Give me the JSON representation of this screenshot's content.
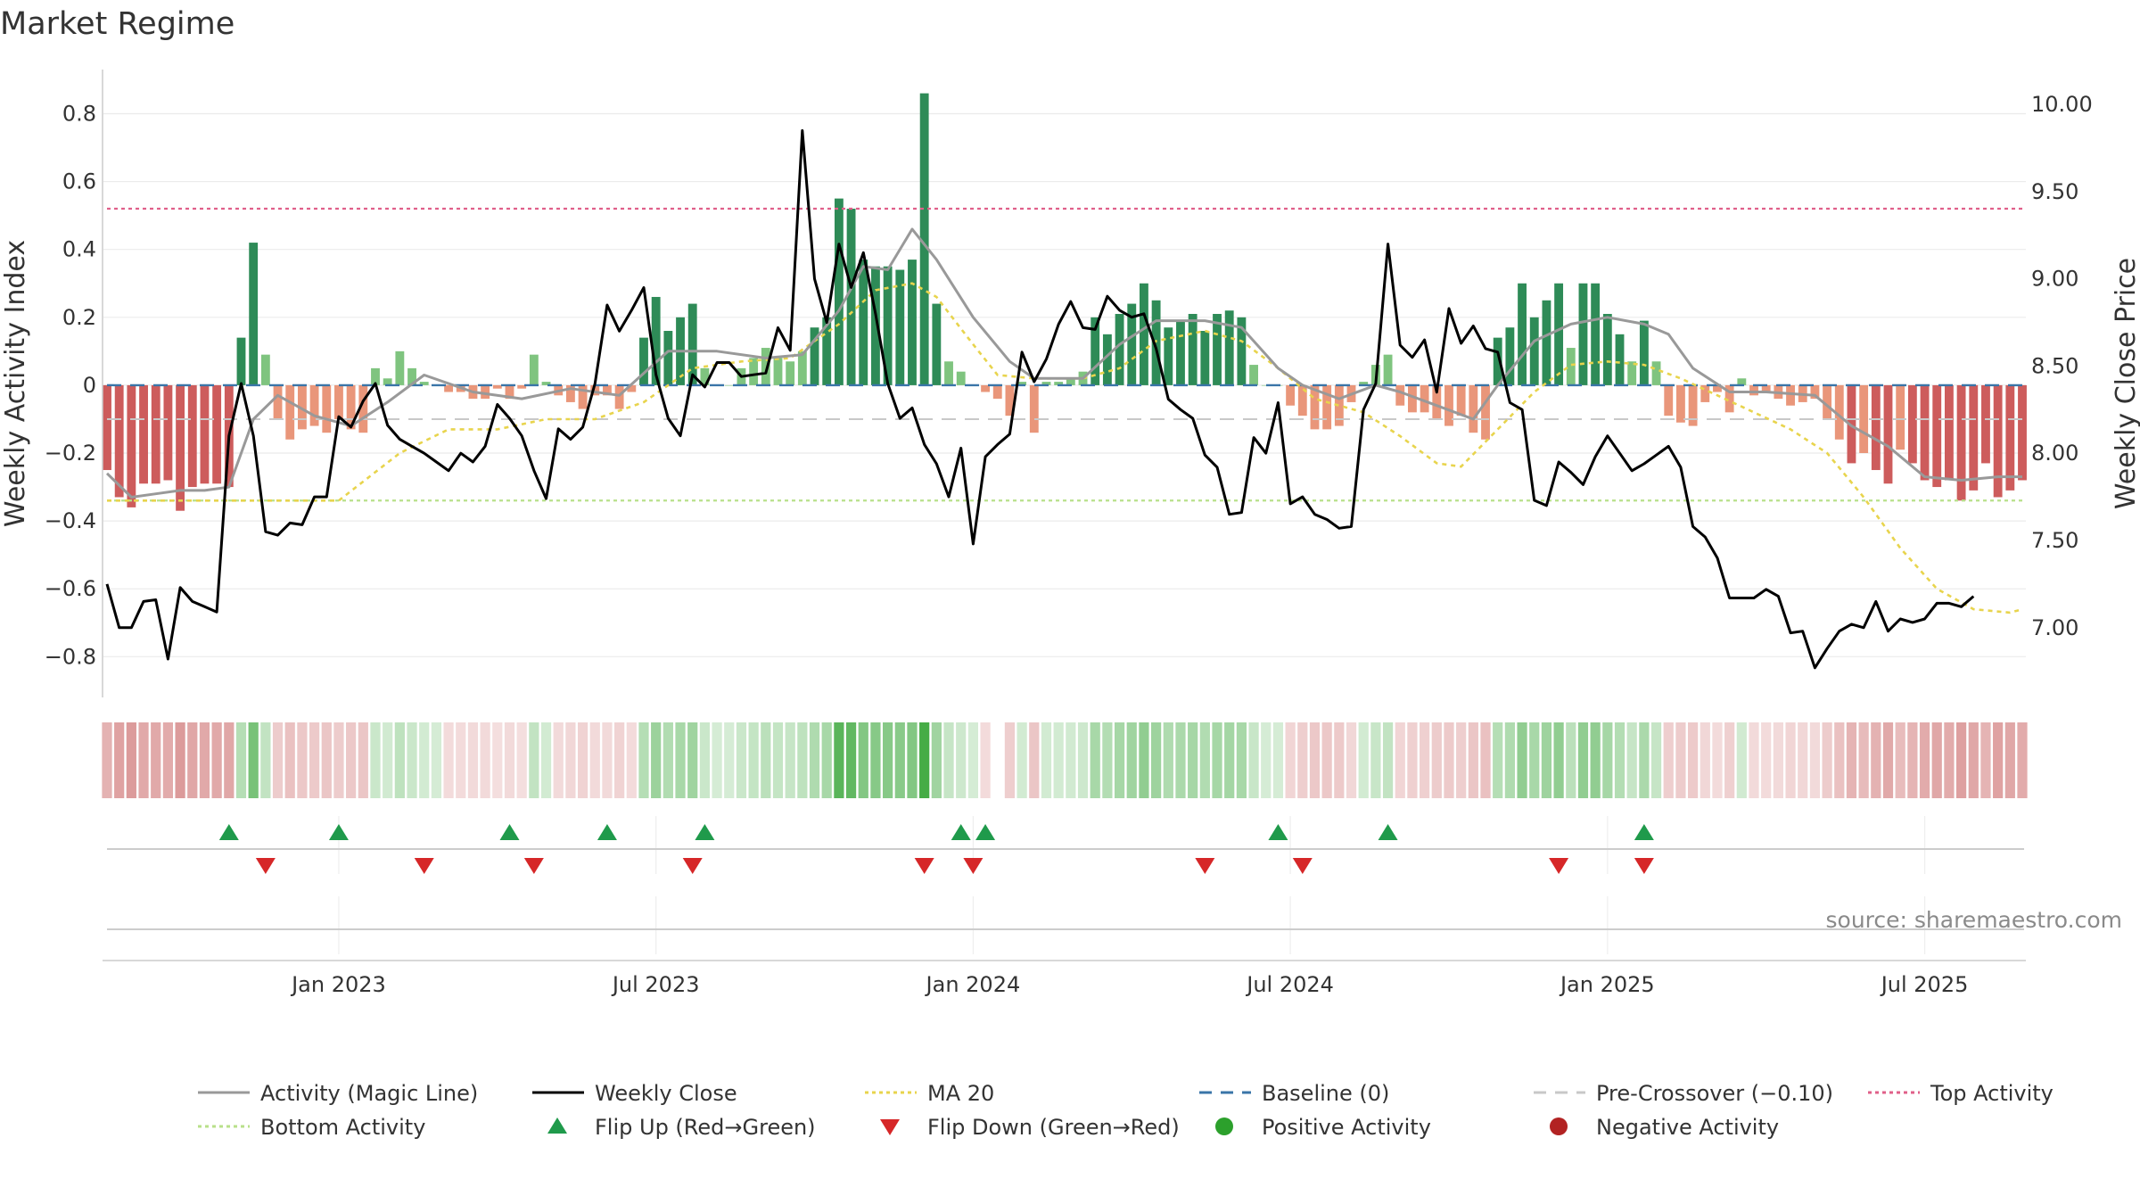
{
  "chart_data": {
    "type": "bar",
    "title": "Market Regime",
    "ylabel": "Weekly Activity Index",
    "ylabel_right": "Weekly Close Price",
    "source": "source: sharemaestro.com",
    "ylim": [
      -0.92,
      0.93
    ],
    "ylim_right": [
      6.6,
      10.2
    ],
    "y_ticks": [
      -0.8,
      -0.6,
      -0.4,
      -0.2,
      0,
      0.2,
      0.4,
      0.6,
      0.8
    ],
    "y_tick_labels": [
      "−0.8",
      "−0.6",
      "−0.4",
      "−0.2",
      "0",
      "0.2",
      "0.4",
      "0.6",
      "0.8"
    ],
    "y_right_ticks": [
      7.0,
      7.5,
      8.0,
      8.5,
      9.0,
      9.5,
      10.0
    ],
    "y_right_tick_labels": [
      "7.00",
      "7.50",
      "8.00",
      "8.50",
      "9.00",
      "9.50",
      "10.00"
    ],
    "x_tick_weeks": [
      19,
      45,
      71,
      97,
      123,
      149
    ],
    "x_tick_labels": [
      "Jan 2023",
      "Jul 2023",
      "Jan 2024",
      "Jul 2024",
      "Jan 2025",
      "Jul 2025"
    ],
    "week_count": 158,
    "top_activity": 0.52,
    "bottom_activity": -0.34,
    "pre_crossover": -0.1,
    "baseline": 0,
    "colors": {
      "strong_positive": "#2e8b57",
      "weak_positive": "#7fc47f",
      "strong_negative": "#cd5c5c",
      "weak_negative": "#e9967a",
      "magic_line": "#999999",
      "weekly_close": "#000000",
      "ma20": "#e8d44d",
      "baseline": "#3a75a8",
      "pre_crossover": "#c8c8c8",
      "top_activity": "#e0608a",
      "bottom_activity": "#b8e08a",
      "flip_up": "#1f9a4b",
      "flip_down": "#d62728",
      "positive_dot": "#2ca02c",
      "negative_dot": "#b22222"
    },
    "activity_keypoints": [
      [
        0,
        -0.25
      ],
      [
        1,
        -0.33
      ],
      [
        2,
        -0.36
      ],
      [
        3,
        -0.29
      ],
      [
        4,
        -0.29
      ],
      [
        5,
        -0.28
      ],
      [
        6,
        -0.37
      ],
      [
        7,
        -0.3
      ],
      [
        8,
        -0.29
      ],
      [
        9,
        -0.29
      ],
      [
        10,
        -0.3
      ],
      [
        11,
        0.14
      ],
      [
        12,
        0.42
      ],
      [
        13,
        0.09
      ],
      [
        14,
        -0.1
      ],
      [
        15,
        -0.16
      ],
      [
        16,
        -0.13
      ],
      [
        17,
        -0.12
      ],
      [
        18,
        -0.14
      ],
      [
        19,
        -0.1
      ],
      [
        20,
        -0.13
      ],
      [
        21,
        -0.14
      ],
      [
        22,
        0.05
      ],
      [
        23,
        0.02
      ],
      [
        24,
        0.1
      ],
      [
        25,
        0.05
      ],
      [
        26,
        0.01
      ],
      [
        27,
        0.0
      ],
      [
        28,
        -0.02
      ],
      [
        29,
        -0.02
      ],
      [
        30,
        -0.04
      ],
      [
        31,
        -0.04
      ],
      [
        32,
        -0.01
      ],
      [
        33,
        -0.04
      ],
      [
        34,
        -0.01
      ],
      [
        35,
        0.09
      ],
      [
        36,
        0.01
      ],
      [
        37,
        -0.03
      ],
      [
        38,
        -0.05
      ],
      [
        39,
        -0.07
      ],
      [
        40,
        -0.03
      ],
      [
        41,
        -0.03
      ],
      [
        42,
        -0.07
      ],
      [
        43,
        -0.02
      ],
      [
        44,
        0.14
      ],
      [
        45,
        0.26
      ],
      [
        46,
        0.16
      ],
      [
        47,
        0.2
      ],
      [
        48,
        0.24
      ],
      [
        49,
        0.05
      ],
      [
        50,
        0.0
      ],
      [
        51,
        0.0
      ],
      [
        52,
        0.05
      ],
      [
        53,
        0.08
      ],
      [
        54,
        0.11
      ],
      [
        55,
        0.08
      ],
      [
        56,
        0.07
      ],
      [
        57,
        0.1
      ],
      [
        58,
        0.17
      ],
      [
        59,
        0.2
      ],
      [
        60,
        0.55
      ],
      [
        61,
        0.52
      ],
      [
        62,
        0.37
      ],
      [
        63,
        0.35
      ],
      [
        64,
        0.35
      ],
      [
        65,
        0.34
      ],
      [
        66,
        0.37
      ],
      [
        67,
        0.86
      ],
      [
        68,
        0.24
      ],
      [
        69,
        0.07
      ],
      [
        70,
        0.04
      ],
      [
        71,
        0.0
      ],
      [
        72,
        -0.02
      ],
      [
        73,
        -0.04
      ],
      [
        74,
        -0.09
      ],
      [
        75,
        0.01
      ],
      [
        76,
        -0.14
      ],
      [
        77,
        0.01
      ],
      [
        78,
        0.01
      ],
      [
        79,
        0.02
      ],
      [
        80,
        0.04
      ],
      [
        81,
        0.2
      ],
      [
        82,
        0.15
      ],
      [
        83,
        0.21
      ],
      [
        84,
        0.24
      ],
      [
        85,
        0.3
      ],
      [
        86,
        0.25
      ],
      [
        87,
        0.17
      ],
      [
        88,
        0.19
      ],
      [
        89,
        0.21
      ],
      [
        90,
        0.16
      ],
      [
        91,
        0.21
      ],
      [
        92,
        0.22
      ],
      [
        93,
        0.2
      ],
      [
        94,
        0.06
      ],
      [
        95,
        0.0
      ],
      [
        96,
        0.0
      ],
      [
        97,
        -0.06
      ],
      [
        98,
        -0.09
      ],
      [
        99,
        -0.13
      ],
      [
        100,
        -0.13
      ],
      [
        101,
        -0.12
      ],
      [
        102,
        -0.05
      ],
      [
        103,
        0.01
      ],
      [
        104,
        0.06
      ],
      [
        105,
        0.09
      ],
      [
        106,
        -0.06
      ],
      [
        107,
        -0.08
      ],
      [
        108,
        -0.08
      ],
      [
        109,
        -0.1
      ],
      [
        110,
        -0.12
      ],
      [
        111,
        -0.09
      ],
      [
        112,
        -0.14
      ],
      [
        113,
        -0.16
      ],
      [
        114,
        0.14
      ],
      [
        115,
        0.17
      ],
      [
        116,
        0.3
      ],
      [
        117,
        0.2
      ],
      [
        118,
        0.25
      ],
      [
        119,
        0.3
      ],
      [
        120,
        0.11
      ],
      [
        121,
        0.3
      ],
      [
        122,
        0.3
      ],
      [
        123,
        0.21
      ],
      [
        124,
        0.15
      ],
      [
        125,
        0.07
      ],
      [
        126,
        0.19
      ],
      [
        127,
        0.07
      ],
      [
        128,
        -0.09
      ],
      [
        129,
        -0.11
      ],
      [
        130,
        -0.12
      ],
      [
        131,
        -0.05
      ],
      [
        132,
        -0.02
      ],
      [
        133,
        -0.08
      ],
      [
        134,
        0.02
      ],
      [
        135,
        -0.03
      ],
      [
        136,
        -0.02
      ],
      [
        137,
        -0.04
      ],
      [
        138,
        -0.06
      ],
      [
        139,
        -0.05
      ],
      [
        140,
        -0.04
      ],
      [
        141,
        -0.1
      ],
      [
        142,
        -0.16
      ],
      [
        143,
        -0.23
      ],
      [
        144,
        -0.2
      ],
      [
        145,
        -0.25
      ],
      [
        146,
        -0.29
      ],
      [
        147,
        -0.19
      ],
      [
        148,
        -0.23
      ],
      [
        149,
        -0.28
      ],
      [
        150,
        -0.3
      ],
      [
        151,
        -0.28
      ],
      [
        152,
        -0.34
      ],
      [
        153,
        -0.31
      ],
      [
        154,
        -0.23
      ],
      [
        155,
        -0.33
      ],
      [
        156,
        -0.31
      ],
      [
        157,
        -0.28
      ]
    ],
    "magic_line_keypoints": [
      [
        0,
        -0.26
      ],
      [
        2,
        -0.33
      ],
      [
        4,
        -0.32
      ],
      [
        6,
        -0.31
      ],
      [
        8,
        -0.31
      ],
      [
        10,
        -0.3
      ],
      [
        12,
        -0.1
      ],
      [
        14,
        -0.03
      ],
      [
        17,
        -0.09
      ],
      [
        20,
        -0.12
      ],
      [
        23,
        -0.05
      ],
      [
        26,
        0.03
      ],
      [
        30,
        -0.02
      ],
      [
        34,
        -0.04
      ],
      [
        38,
        -0.01
      ],
      [
        42,
        -0.03
      ],
      [
        46,
        0.1
      ],
      [
        50,
        0.1
      ],
      [
        54,
        0.08
      ],
      [
        57,
        0.09
      ],
      [
        60,
        0.22
      ],
      [
        62,
        0.35
      ],
      [
        64,
        0.34
      ],
      [
        66,
        0.46
      ],
      [
        68,
        0.37
      ],
      [
        71,
        0.2
      ],
      [
        74,
        0.07
      ],
      [
        76,
        0.02
      ],
      [
        80,
        0.02
      ],
      [
        83,
        0.12
      ],
      [
        86,
        0.19
      ],
      [
        90,
        0.19
      ],
      [
        93,
        0.17
      ],
      [
        96,
        0.05
      ],
      [
        98,
        0.0
      ],
      [
        101,
        -0.04
      ],
      [
        104,
        0.0
      ],
      [
        106,
        -0.02
      ],
      [
        109,
        -0.06
      ],
      [
        112,
        -0.1
      ],
      [
        114,
        0.0
      ],
      [
        117,
        0.13
      ],
      [
        120,
        0.18
      ],
      [
        123,
        0.2
      ],
      [
        126,
        0.18
      ],
      [
        128,
        0.15
      ],
      [
        130,
        0.05
      ],
      [
        133,
        -0.02
      ],
      [
        136,
        -0.02
      ],
      [
        140,
        -0.03
      ],
      [
        143,
        -0.12
      ],
      [
        146,
        -0.18
      ],
      [
        149,
        -0.27
      ],
      [
        152,
        -0.28
      ],
      [
        155,
        -0.27
      ],
      [
        157,
        -0.27
      ]
    ],
    "weekly_close_keypoints": [
      [
        0,
        7.25
      ],
      [
        1,
        7.0
      ],
      [
        2,
        7.0
      ],
      [
        3,
        7.15
      ],
      [
        4,
        7.16
      ],
      [
        5,
        6.82
      ],
      [
        6,
        7.23
      ],
      [
        7,
        7.15
      ],
      [
        8,
        7.12
      ],
      [
        9,
        7.09
      ],
      [
        10,
        8.1
      ],
      [
        11,
        8.4
      ],
      [
        12,
        8.1
      ],
      [
        13,
        7.55
      ],
      [
        14,
        7.53
      ],
      [
        15,
        7.6
      ],
      [
        16,
        7.59
      ],
      [
        17,
        7.75
      ],
      [
        18,
        7.75
      ],
      [
        19,
        8.21
      ],
      [
        20,
        8.15
      ],
      [
        21,
        8.3
      ],
      [
        22,
        8.4
      ],
      [
        23,
        8.16
      ],
      [
        24,
        8.08
      ],
      [
        25,
        8.04
      ],
      [
        26,
        8.0
      ],
      [
        27,
        7.95
      ],
      [
        28,
        7.9
      ],
      [
        29,
        8.0
      ],
      [
        30,
        7.95
      ],
      [
        31,
        8.04
      ],
      [
        32,
        8.28
      ],
      [
        33,
        8.2
      ],
      [
        34,
        8.1
      ],
      [
        35,
        7.9
      ],
      [
        36,
        7.74
      ],
      [
        37,
        8.14
      ],
      [
        38,
        8.08
      ],
      [
        39,
        8.15
      ],
      [
        40,
        8.4
      ],
      [
        41,
        8.85
      ],
      [
        42,
        8.7
      ],
      [
        43,
        8.82
      ],
      [
        44,
        8.95
      ],
      [
        45,
        8.45
      ],
      [
        46,
        8.2
      ],
      [
        47,
        8.1
      ],
      [
        48,
        8.45
      ],
      [
        49,
        8.38
      ],
      [
        50,
        8.52
      ],
      [
        51,
        8.52
      ],
      [
        52,
        8.44
      ],
      [
        53,
        8.45
      ],
      [
        54,
        8.46
      ],
      [
        55,
        8.72
      ],
      [
        56,
        8.59
      ],
      [
        57,
        9.85
      ],
      [
        58,
        9.0
      ],
      [
        59,
        8.75
      ],
      [
        60,
        9.2
      ],
      [
        61,
        8.95
      ],
      [
        62,
        9.15
      ],
      [
        63,
        8.8
      ],
      [
        64,
        8.4
      ],
      [
        65,
        8.2
      ],
      [
        66,
        8.26
      ],
      [
        67,
        8.05
      ],
      [
        68,
        7.94
      ],
      [
        69,
        7.75
      ],
      [
        70,
        8.03
      ],
      [
        71,
        7.48
      ],
      [
        72,
        7.98
      ],
      [
        73,
        8.05
      ],
      [
        74,
        8.11
      ],
      [
        75,
        8.58
      ],
      [
        76,
        8.41
      ],
      [
        77,
        8.54
      ],
      [
        78,
        8.74
      ],
      [
        79,
        8.87
      ],
      [
        80,
        8.72
      ],
      [
        81,
        8.71
      ],
      [
        82,
        8.9
      ],
      [
        83,
        8.82
      ],
      [
        84,
        8.78
      ],
      [
        85,
        8.8
      ],
      [
        86,
        8.6
      ],
      [
        87,
        8.31
      ],
      [
        88,
        8.25
      ],
      [
        89,
        8.2
      ],
      [
        90,
        7.99
      ],
      [
        91,
        7.92
      ],
      [
        92,
        7.65
      ],
      [
        93,
        7.66
      ],
      [
        94,
        8.09
      ],
      [
        95,
        8.0
      ],
      [
        96,
        8.29
      ],
      [
        97,
        7.71
      ],
      [
        98,
        7.75
      ],
      [
        99,
        7.65
      ],
      [
        100,
        7.62
      ],
      [
        101,
        7.57
      ],
      [
        102,
        7.58
      ],
      [
        103,
        8.25
      ],
      [
        104,
        8.4
      ],
      [
        105,
        9.2
      ],
      [
        106,
        8.62
      ],
      [
        107,
        8.55
      ],
      [
        108,
        8.65
      ],
      [
        109,
        8.35
      ],
      [
        110,
        8.83
      ],
      [
        111,
        8.63
      ],
      [
        112,
        8.73
      ],
      [
        113,
        8.6
      ],
      [
        114,
        8.58
      ],
      [
        115,
        8.29
      ],
      [
        116,
        8.25
      ],
      [
        117,
        7.73
      ],
      [
        118,
        7.7
      ],
      [
        119,
        7.95
      ],
      [
        120,
        7.89
      ],
      [
        121,
        7.82
      ],
      [
        122,
        7.98
      ],
      [
        123,
        8.1
      ],
      [
        124,
        8.0
      ],
      [
        125,
        7.9
      ],
      [
        126,
        7.94
      ],
      [
        127,
        7.99
      ],
      [
        128,
        8.04
      ],
      [
        129,
        7.92
      ],
      [
        130,
        7.58
      ],
      [
        131,
        7.52
      ],
      [
        132,
        7.4
      ],
      [
        133,
        7.17
      ],
      [
        134,
        7.17
      ],
      [
        135,
        7.17
      ],
      [
        136,
        7.22
      ],
      [
        137,
        7.18
      ],
      [
        138,
        6.97
      ],
      [
        139,
        6.98
      ],
      [
        140,
        6.77
      ],
      [
        141,
        6.88
      ],
      [
        142,
        6.98
      ],
      [
        143,
        7.02
      ],
      [
        144,
        7.0
      ],
      [
        145,
        7.15
      ],
      [
        146,
        6.98
      ],
      [
        147,
        7.05
      ],
      [
        148,
        7.03
      ],
      [
        149,
        7.05
      ],
      [
        150,
        7.14
      ],
      [
        151,
        7.14
      ],
      [
        152,
        7.12
      ],
      [
        153,
        7.18
      ]
    ],
    "ma20_keypoints": [
      [
        0,
        -0.34
      ],
      [
        10,
        -0.34
      ],
      [
        19,
        -0.34
      ],
      [
        24,
        -0.2
      ],
      [
        28,
        -0.13
      ],
      [
        32,
        -0.13
      ],
      [
        36,
        -0.1
      ],
      [
        40,
        -0.1
      ],
      [
        44,
        -0.05
      ],
      [
        48,
        0.05
      ],
      [
        52,
        0.07
      ],
      [
        56,
        0.08
      ],
      [
        60,
        0.18
      ],
      [
        63,
        0.28
      ],
      [
        66,
        0.3
      ],
      [
        68,
        0.26
      ],
      [
        71,
        0.12
      ],
      [
        73,
        0.03
      ],
      [
        76,
        0.02
      ],
      [
        80,
        0.02
      ],
      [
        83,
        0.05
      ],
      [
        86,
        0.13
      ],
      [
        90,
        0.16
      ],
      [
        93,
        0.13
      ],
      [
        96,
        0.05
      ],
      [
        99,
        -0.04
      ],
      [
        103,
        -0.08
      ],
      [
        106,
        -0.15
      ],
      [
        109,
        -0.23
      ],
      [
        111,
        -0.24
      ],
      [
        114,
        -0.13
      ],
      [
        117,
        -0.02
      ],
      [
        120,
        0.06
      ],
      [
        123,
        0.07
      ],
      [
        126,
        0.06
      ],
      [
        129,
        0.02
      ],
      [
        132,
        -0.03
      ],
      [
        135,
        -0.08
      ],
      [
        138,
        -0.13
      ],
      [
        141,
        -0.2
      ],
      [
        144,
        -0.33
      ],
      [
        147,
        -0.48
      ],
      [
        150,
        -0.6
      ],
      [
        153,
        -0.66
      ],
      [
        156,
        -0.67
      ],
      [
        157,
        -0.66
      ]
    ],
    "regime_strip_gap_weeks": [
      73
    ],
    "flip_up_weeks": [
      10,
      19,
      33,
      41,
      49,
      70,
      72,
      96,
      105,
      126
    ],
    "flip_down_weeks": [
      13,
      26,
      35,
      48,
      67,
      71,
      90,
      98,
      119,
      126
    ],
    "legend": [
      "Activity (Magic Line)",
      "Weekly Close",
      "MA 20",
      "Baseline (0)",
      "Pre-Crossover (−0.10)",
      "Top Activity",
      "Bottom Activity",
      "Flip Up (Red→Green)",
      "Flip Down (Green→Red)",
      "Positive Activity",
      "Negative Activity"
    ]
  }
}
